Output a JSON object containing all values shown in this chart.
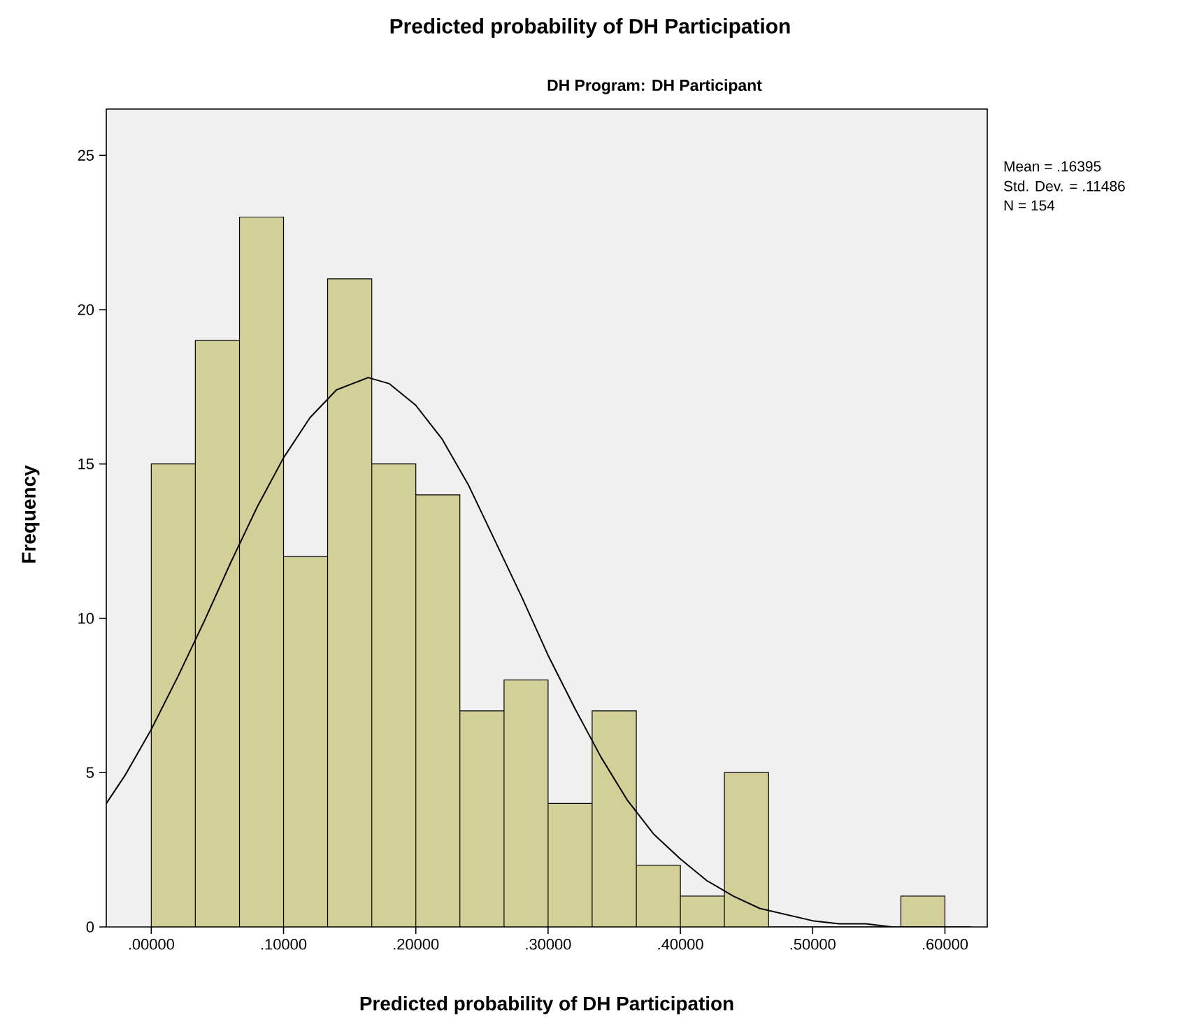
{
  "chart_data": {
    "type": "histogram",
    "title": "Predicted probability of DH Participation",
    "subtitle": "DH Program: DH Participant",
    "xlabel": "Predicted probability of DH Participation",
    "ylabel": "Frequency",
    "bins": [
      0,
      0.0333,
      0.0667,
      0.1,
      0.1333,
      0.1667,
      0.2,
      0.2333,
      0.2667,
      0.3,
      0.3333,
      0.3667,
      0.4,
      0.4333,
      0.4667,
      0.5,
      0.5333,
      0.5667,
      0.6
    ],
    "values": [
      15,
      19,
      23,
      12,
      21,
      15,
      14,
      7,
      8,
      4,
      7,
      2,
      1,
      5,
      0,
      0,
      0,
      1
    ],
    "color": "#d3cf98",
    "series": [
      {
        "type": "line",
        "color": "#000000",
        "x": [
          -0.034,
          -0.02,
          0,
          0.02,
          0.04,
          0.06,
          0.08,
          0.1,
          0.12,
          0.14,
          0.164,
          0.18,
          0.2,
          0.22,
          0.24,
          0.26,
          0.28,
          0.3,
          0.32,
          0.34,
          0.36,
          0.38,
          0.4,
          0.42,
          0.44,
          0.46,
          0.48,
          0.5,
          0.52,
          0.54,
          0.56,
          0.58,
          0.6,
          0.62
        ],
        "values": [
          4.0,
          4.9,
          6.4,
          8.1,
          9.9,
          11.8,
          13.6,
          15.2,
          16.5,
          17.4,
          17.8,
          17.6,
          16.9,
          15.8,
          14.3,
          12.5,
          10.7,
          8.8,
          7.1,
          5.5,
          4.1,
          3.0,
          2.2,
          1.5,
          1.0,
          0.6,
          0.4,
          0.2,
          0.1,
          0.1,
          0.0,
          0.0,
          0.0,
          0.0
        ]
      }
    ],
    "xlim": [
      -0.034,
      0.632
    ],
    "ylim": [
      0,
      26.5
    ],
    "xticks": [
      {
        "value": 0,
        "label": ".00000"
      },
      {
        "value": 0.1,
        "label": ".10000"
      },
      {
        "value": 0.2,
        "label": ".20000"
      },
      {
        "value": 0.3,
        "label": ".30000"
      },
      {
        "value": 0.4,
        "label": ".40000"
      },
      {
        "value": 0.5,
        "label": ".50000"
      },
      {
        "value": 0.6,
        "label": ".60000"
      }
    ],
    "yticks": [
      0,
      5,
      10,
      15,
      20,
      25
    ],
    "annotations": [
      "Mean = .16395",
      "Std. Dev. = .11486",
      "N = 154"
    ]
  }
}
